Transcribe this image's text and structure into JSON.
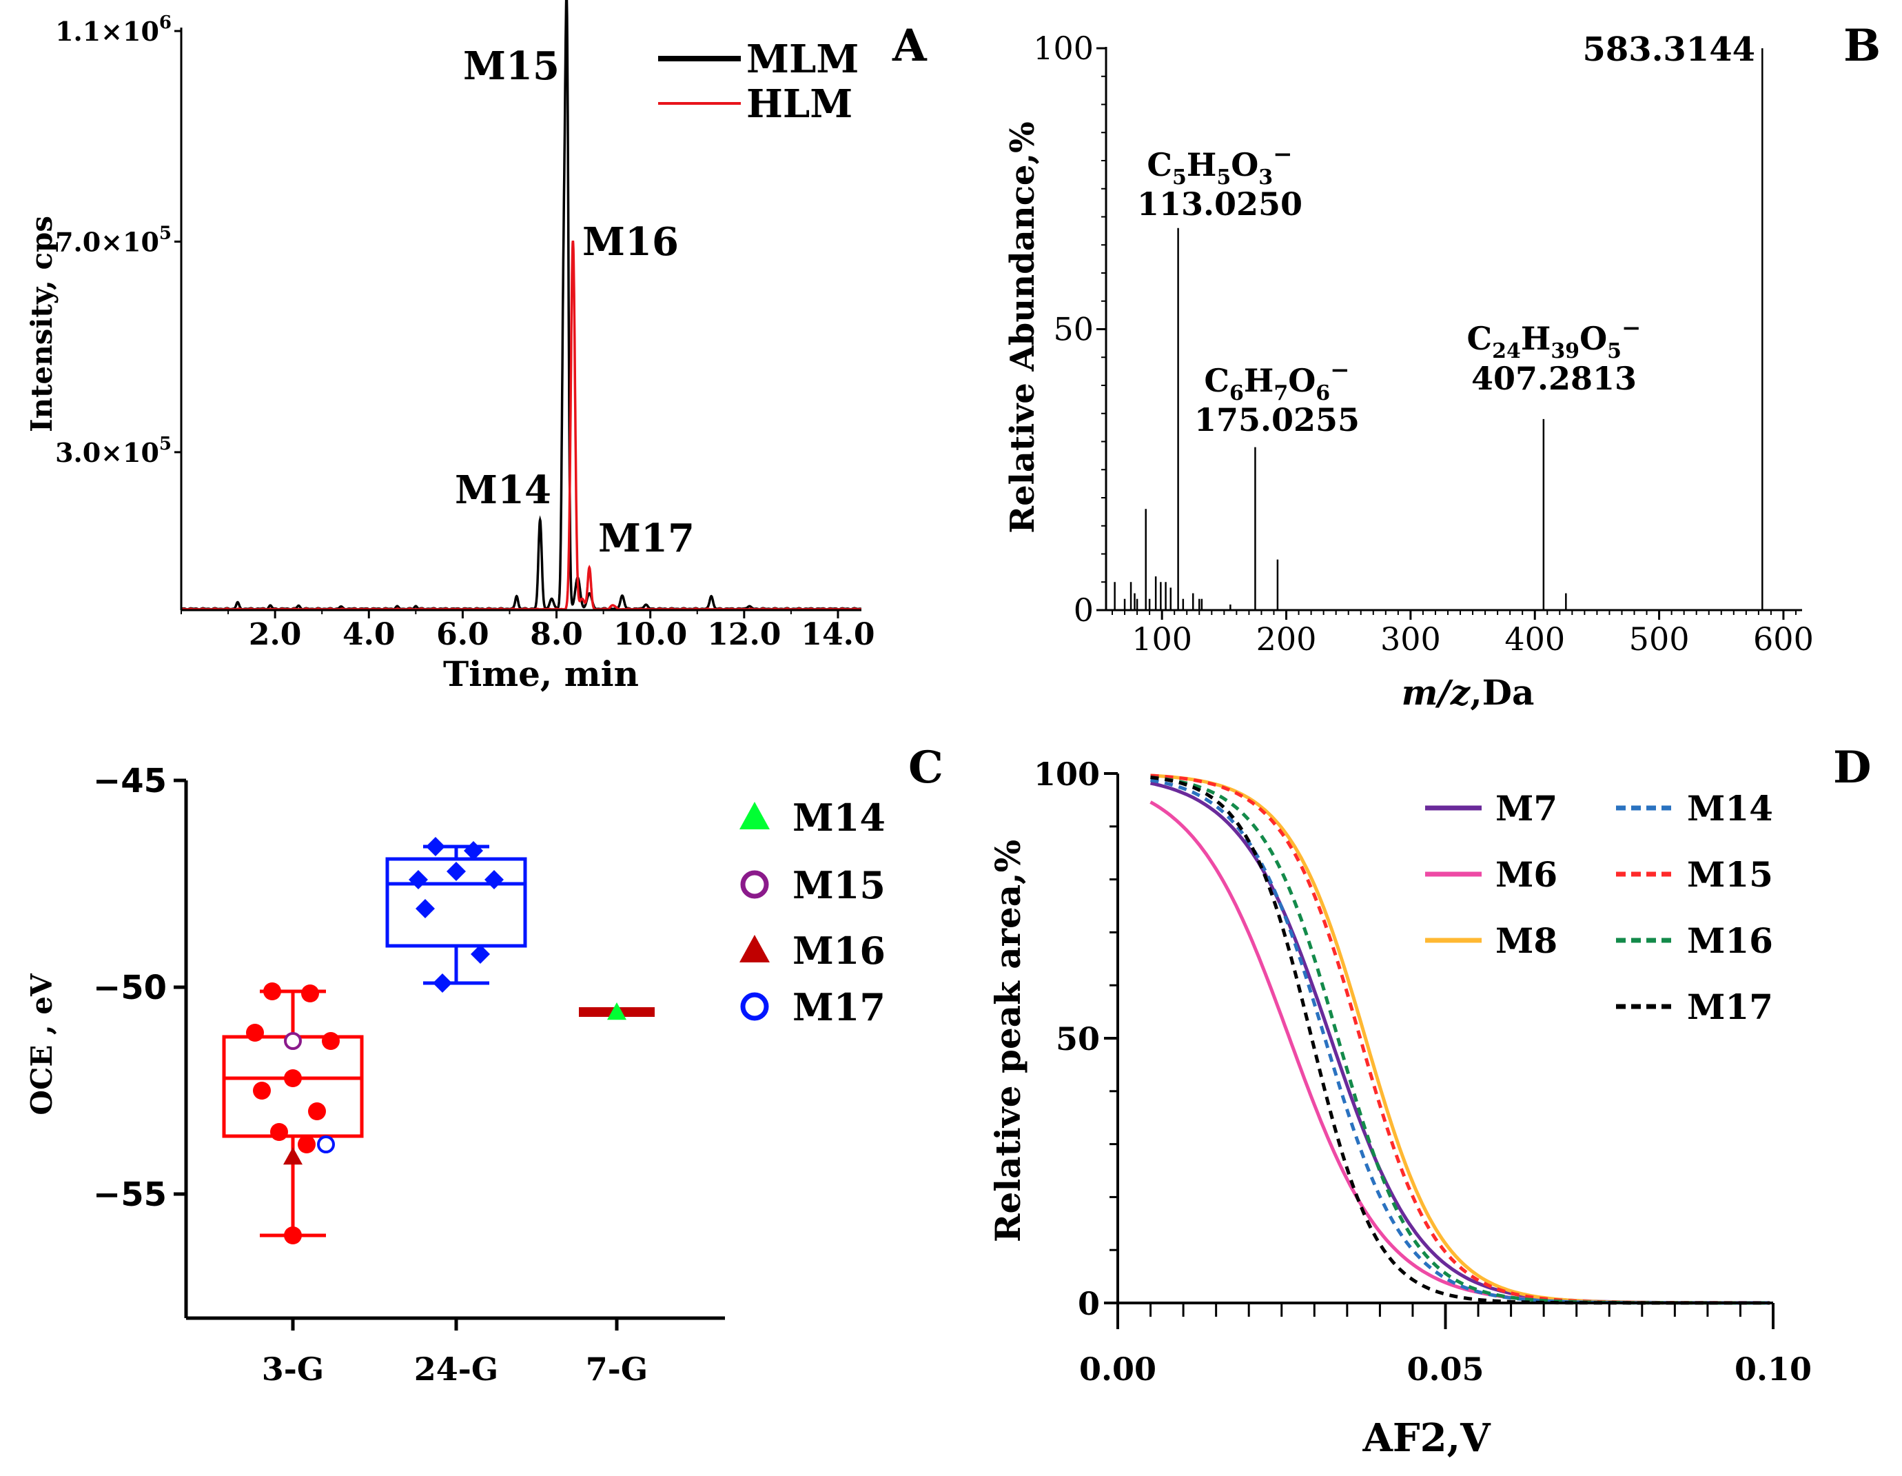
{
  "chart_data": [
    {
      "panel": "A",
      "type": "line",
      "xlabel": "Time, min",
      "ylabel": "Intensity, cps",
      "xlim": [
        0,
        14.5
      ],
      "ylim": [
        0,
        1100000
      ],
      "x_ticks": [
        {
          "v": 2,
          "label": "2.0"
        },
        {
          "v": 4,
          "label": "4.0"
        },
        {
          "v": 6,
          "label": "6.0"
        },
        {
          "v": 8,
          "label": "8.0"
        },
        {
          "v": 10,
          "label": "10.0"
        },
        {
          "v": 12,
          "label": "12.0"
        },
        {
          "v": 14,
          "label": "14.0"
        }
      ],
      "y_ticks": [
        {
          "v": 300000,
          "base": "3.0×10",
          "exp": "5"
        },
        {
          "v": 700000,
          "base": "7.0×10",
          "exp": "5"
        },
        {
          "v": 1100000,
          "base": "1.1×10",
          "exp": "6"
        }
      ],
      "legend": [
        {
          "name": "MLM",
          "color": "#000000"
        },
        {
          "name": "HLM",
          "color": "#e8141b"
        }
      ],
      "series": [
        {
          "name": "MLM",
          "color": "#000000",
          "peaks": [
            {
              "x": 1.2,
              "y": 12000,
              "w": 0.03
            },
            {
              "x": 1.9,
              "y": 6000,
              "w": 0.03
            },
            {
              "x": 2.5,
              "y": 6000,
              "w": 0.03
            },
            {
              "x": 3.4,
              "y": 4000,
              "w": 0.03
            },
            {
              "x": 4.6,
              "y": 4000,
              "w": 0.03
            },
            {
              "x": 5.0,
              "y": 5000,
              "w": 0.03
            },
            {
              "x": 7.15,
              "y": 25000,
              "w": 0.03
            },
            {
              "x": 7.65,
              "y": 170000,
              "w": 0.035
            },
            {
              "x": 7.9,
              "y": 20000,
              "w": 0.04
            },
            {
              "x": 8.15,
              "y": 560000,
              "w": 0.035
            },
            {
              "x": 8.22,
              "y": 1080000,
              "w": 0.035
            },
            {
              "x": 8.45,
              "y": 60000,
              "w": 0.05
            },
            {
              "x": 8.7,
              "y": 30000,
              "w": 0.05
            },
            {
              "x": 9.4,
              "y": 25000,
              "w": 0.04
            },
            {
              "x": 9.9,
              "y": 8000,
              "w": 0.04
            },
            {
              "x": 11.3,
              "y": 25000,
              "w": 0.035
            },
            {
              "x": 12.1,
              "y": 5000,
              "w": 0.04
            }
          ]
        },
        {
          "name": "HLM",
          "color": "#e8141b",
          "peaks": [
            {
              "x": 8.35,
              "y": 700000,
              "w": 0.045
            },
            {
              "x": 8.55,
              "y": 20000,
              "w": 0.05
            },
            {
              "x": 8.7,
              "y": 80000,
              "w": 0.035
            },
            {
              "x": 9.2,
              "y": 8000,
              "w": 0.05
            }
          ]
        }
      ],
      "annotations": [
        {
          "text": "M15",
          "x": 7.3,
          "y": 1000000
        },
        {
          "text": "M16",
          "x": 9.3,
          "y": 680000
        },
        {
          "text": "M14",
          "x": 7.0,
          "y": 200000
        },
        {
          "text": "M17",
          "x": 10.0,
          "y": 130000
        }
      ]
    },
    {
      "panel": "B",
      "type": "bar",
      "xlabel_italic": "m/z",
      "xlabel_rest": ",Da",
      "ylabel": "Relative Abundance,%",
      "xlim": [
        55,
        615
      ],
      "ylim": [
        0,
        100
      ],
      "x_ticks": [
        100,
        200,
        300,
        400,
        500,
        600
      ],
      "y_ticks": [
        0,
        50,
        100
      ],
      "peaks": [
        {
          "mz": 62,
          "ab": 5
        },
        {
          "mz": 70,
          "ab": 2
        },
        {
          "mz": 75,
          "ab": 5
        },
        {
          "mz": 78,
          "ab": 3
        },
        {
          "mz": 80,
          "ab": 2
        },
        {
          "mz": 87,
          "ab": 18
        },
        {
          "mz": 90,
          "ab": 2
        },
        {
          "mz": 95,
          "ab": 6
        },
        {
          "mz": 99,
          "ab": 5
        },
        {
          "mz": 103,
          "ab": 5
        },
        {
          "mz": 107,
          "ab": 4
        },
        {
          "mz": 113,
          "ab": 68
        },
        {
          "mz": 117,
          "ab": 2
        },
        {
          "mz": 125,
          "ab": 3
        },
        {
          "mz": 130,
          "ab": 2
        },
        {
          "mz": 132,
          "ab": 2
        },
        {
          "mz": 155,
          "ab": 1
        },
        {
          "mz": 175,
          "ab": 29
        },
        {
          "mz": 193,
          "ab": 9
        },
        {
          "mz": 407,
          "ab": 34
        },
        {
          "mz": 425,
          "ab": 3
        },
        {
          "mz": 583,
          "ab": 100
        }
      ],
      "annotations": [
        {
          "formula": [
            [
              "C",
              ""
            ],
            [
              "5",
              "sub"
            ],
            [
              "H",
              ""
            ],
            [
              "5",
              "sub"
            ],
            [
              "O",
              ""
            ],
            [
              "3",
              "sub"
            ],
            [
              "−",
              "sup"
            ]
          ],
          "mass": "113.0250"
        },
        {
          "formula": [
            [
              "C",
              ""
            ],
            [
              "6",
              "sub"
            ],
            [
              "H",
              ""
            ],
            [
              "7",
              "sub"
            ],
            [
              "O",
              ""
            ],
            [
              "6",
              "sub"
            ],
            [
              "−",
              "sup"
            ]
          ],
          "mass": "175.0255"
        },
        {
          "formula": [
            [
              "C",
              ""
            ],
            [
              "24",
              "sub"
            ],
            [
              "H",
              ""
            ],
            [
              "39",
              "sub"
            ],
            [
              "O",
              ""
            ],
            [
              "5",
              "sub"
            ],
            [
              "−",
              "sup"
            ]
          ],
          "mass": "407.2813"
        },
        {
          "formula": [],
          "mass": "583.3144"
        }
      ]
    },
    {
      "panel": "C",
      "type": "box",
      "ylabel": "OCE , eV",
      "ylim": [
        -58,
        -45
      ],
      "y_ticks": [
        {
          "v": -45,
          "label": "−45"
        },
        {
          "v": -50,
          "label": "−50"
        },
        {
          "v": -55,
          "label": "−55"
        }
      ],
      "groups": [
        {
          "label": "3-G",
          "color": "#ff0000",
          "marker": "circle",
          "min": -56.0,
          "q1": -53.6,
          "median": -52.2,
          "q3": -51.2,
          "max": -50.1,
          "points": [
            -50.1,
            -50.15,
            -51.1,
            -51.3,
            -52.2,
            -52.5,
            -53.0,
            -53.5,
            -53.8,
            -56.0
          ]
        },
        {
          "label": "24-G",
          "color": "#0015ff",
          "marker": "diamond",
          "min": -49.9,
          "q1": -49.0,
          "median": -47.5,
          "q3": -46.9,
          "max": -46.6,
          "points": [
            -46.6,
            -46.7,
            -47.4,
            -47.4,
            -47.2,
            -48.1,
            -49.2,
            -49.9
          ]
        },
        {
          "label": "7-G",
          "color": "#c00000",
          "marker": "none",
          "min": -50.6,
          "q1": -50.6,
          "median": -50.6,
          "q3": -50.6,
          "max": -50.6,
          "points": []
        }
      ],
      "special_points": [
        {
          "metabolite": "M14",
          "group": 2,
          "y": -50.6
        },
        {
          "metabolite": "M15",
          "group": 0,
          "y": -51.3
        },
        {
          "metabolite": "M16",
          "group": 0,
          "y": -54.1
        },
        {
          "metabolite": "M17",
          "group": 0,
          "y": -53.8
        }
      ],
      "legend": [
        {
          "name": "M14",
          "marker": "triangle-filled",
          "color": "#00ff33"
        },
        {
          "name": "M15",
          "marker": "circle-open",
          "color": "#8b1a8b"
        },
        {
          "name": "M16",
          "marker": "triangle-filled",
          "color": "#c00000"
        },
        {
          "name": "M17",
          "marker": "circle-open",
          "color": "#0015ff"
        }
      ]
    },
    {
      "panel": "D",
      "type": "line",
      "xlabel": "AF2,V",
      "ylabel": "Relative peak area,%",
      "xlim": [
        0,
        0.1
      ],
      "ylim": [
        0,
        100
      ],
      "x_ticks": [
        {
          "v": 0,
          "label": "0.00"
        },
        {
          "v": 0.05,
          "label": "0.05"
        },
        {
          "v": 0.1,
          "label": "0.10"
        }
      ],
      "y_ticks": [
        0,
        50,
        100
      ],
      "series": [
        {
          "name": "M7",
          "color": "#6a2a9a",
          "dash": false,
          "x50": 0.0325,
          "k": 0.0069,
          "amp": 100
        },
        {
          "name": "M6",
          "color": "#ee4aa5",
          "dash": false,
          "x50": 0.0262,
          "k": 0.0074,
          "amp": 100
        },
        {
          "name": "M8",
          "color": "#ffb832",
          "dash": false,
          "x50": 0.0378,
          "k": 0.0059,
          "amp": 100
        },
        {
          "name": "M14",
          "color": "#2a72c0",
          "dash": true,
          "x50": 0.0316,
          "k": 0.0061,
          "amp": 100
        },
        {
          "name": "M15",
          "color": "#ff2a2a",
          "dash": true,
          "x50": 0.037,
          "k": 0.0058,
          "amp": 100
        },
        {
          "name": "M16",
          "color": "#138a4a",
          "dash": true,
          "x50": 0.0336,
          "k": 0.0058,
          "amp": 100
        },
        {
          "name": "M17",
          "color": "#000000",
          "dash": true,
          "x50": 0.0296,
          "k": 0.005,
          "amp": 100
        }
      ]
    }
  ],
  "panel_labels": [
    "A",
    "B",
    "C",
    "D"
  ]
}
